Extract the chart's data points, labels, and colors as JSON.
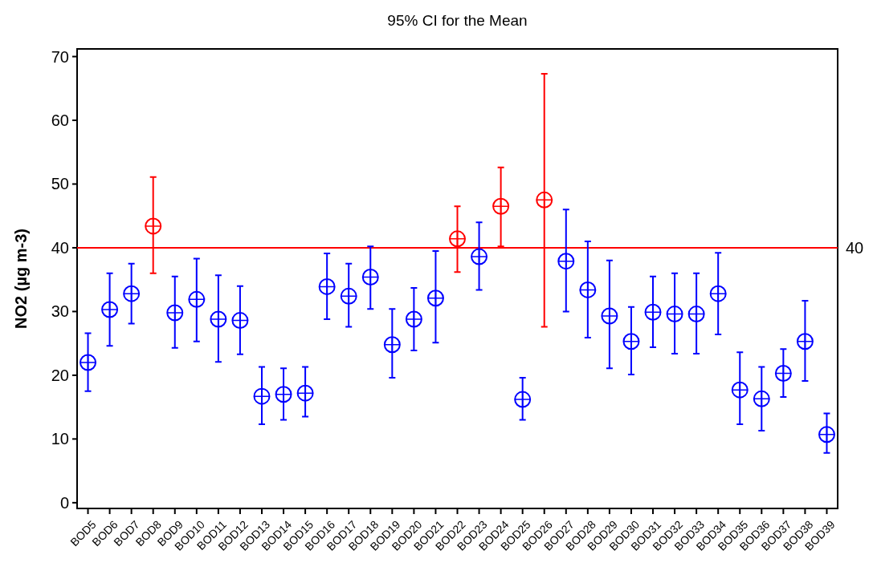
{
  "chart_data": {
    "type": "scatter",
    "title": "95% CI for the Mean",
    "ylabel": "NO2 (µg m-3)",
    "categories": [
      "BOD5",
      "BOD6",
      "BOD7",
      "BOD8",
      "BOD9",
      "BOD10",
      "BOD11",
      "BOD12",
      "BOD13",
      "BOD14",
      "BOD15",
      "BOD16",
      "BOD17",
      "BOD18",
      "BOD19",
      "BOD20",
      "BOD21",
      "BOD22",
      "BOD23",
      "BOD24",
      "BOD25",
      "BOD26",
      "BOD27",
      "BOD28",
      "BOD29",
      "BOD30",
      "BOD31",
      "BOD32",
      "BOD33",
      "BOD34",
      "BOD35",
      "BOD36",
      "BOD37",
      "BOD38",
      "BOD39"
    ],
    "values": [
      22,
      30.3,
      32.8,
      43.4,
      29.8,
      31.9,
      28.8,
      28.6,
      16.7,
      17,
      17.2,
      33.9,
      32.4,
      35.4,
      24.8,
      28.8,
      32.1,
      41.4,
      38.6,
      46.5,
      16.2,
      47.5,
      37.9,
      33.4,
      29.3,
      25.3,
      29.9,
      29.6,
      29.6,
      32.8,
      17.7,
      16.3,
      20.3,
      25.3,
      10.7
    ],
    "errors": [
      [
        17.5,
        26.6
      ],
      [
        24.6,
        36
      ],
      [
        28.1,
        37.5
      ],
      [
        36,
        51.1
      ],
      [
        24.3,
        35.5
      ],
      [
        25.3,
        38.3
      ],
      [
        22.1,
        35.7
      ],
      [
        23.3,
        34
      ],
      [
        12.3,
        21.3
      ],
      [
        13,
        21.1
      ],
      [
        13.5,
        21.3
      ],
      [
        28.8,
        39.1
      ],
      [
        27.6,
        37.5
      ],
      [
        30.4,
        40.2
      ],
      [
        19.6,
        30.4
      ],
      [
        23.9,
        33.7
      ],
      [
        25.1,
        39.5
      ],
      [
        36.2,
        46.5
      ],
      [
        33.4,
        44
      ],
      [
        40.2,
        52.6
      ],
      [
        13,
        19.6
      ],
      [
        27.6,
        67.3
      ],
      [
        30,
        46
      ],
      [
        25.9,
        41
      ],
      [
        21.1,
        38
      ],
      [
        20.1,
        30.7
      ],
      [
        24.4,
        35.5
      ],
      [
        23.4,
        36
      ],
      [
        23.4,
        36
      ],
      [
        26.4,
        39.2
      ],
      [
        12.3,
        23.6
      ],
      [
        11.3,
        21.3
      ],
      [
        16.6,
        24.1
      ],
      [
        19.1,
        31.7
      ],
      [
        7.8,
        14
      ]
    ],
    "colors": [
      "#0000ff",
      "#0000ff",
      "#0000ff",
      "#ff0000",
      "#0000ff",
      "#0000ff",
      "#0000ff",
      "#0000ff",
      "#0000ff",
      "#0000ff",
      "#0000ff",
      "#0000ff",
      "#0000ff",
      "#0000ff",
      "#0000ff",
      "#0000ff",
      "#0000ff",
      "#ff0000",
      "#0000ff",
      "#ff0000",
      "#0000ff",
      "#ff0000",
      "#0000ff",
      "#0000ff",
      "#0000ff",
      "#0000ff",
      "#0000ff",
      "#0000ff",
      "#0000ff",
      "#0000ff",
      "#0000ff",
      "#0000ff",
      "#0000ff",
      "#0000ff",
      "#0000ff"
    ],
    "marker": "circle",
    "ylim": [
      -0.9,
      71.2
    ],
    "yticks": [
      0,
      10,
      20,
      30,
      40,
      50,
      60,
      70
    ],
    "ref_lines": [
      {
        "axis": "y",
        "value": 40,
        "label": "40",
        "color": "#ff0000"
      }
    ],
    "grid": false
  }
}
